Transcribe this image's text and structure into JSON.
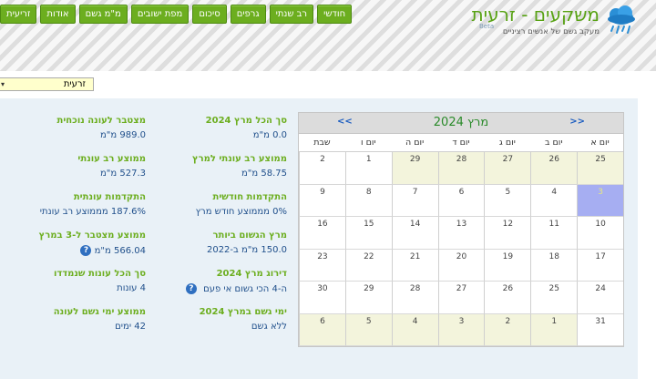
{
  "nav": [
    "זריעית",
    "אודות",
    "מ\"מ גשם",
    "מפת ישובים",
    "סיכום",
    "גרפים",
    "רב שנתי",
    "חודשי"
  ],
  "logo": {
    "title": "משקעים - זרעית",
    "subtitle": "מעקב גשם של אנשים רציניים",
    "beta": "Beta"
  },
  "location_select": {
    "value": "זרעית"
  },
  "stats_left": [
    {
      "label": "מצטבר לעונה נוכחית",
      "value": "989.0 מ\"מ"
    },
    {
      "label": "ממוצע רב עונתי",
      "value": "527.3 מ\"מ"
    },
    {
      "label": "התקדמות עונתית",
      "value": "187.6% מממוצע רב עונתי"
    },
    {
      "label": "ממוצע מצטבר ל-3 במרץ",
      "value": "566.04 מ\"מ"
    },
    {
      "label": "סך הכל עונות שנמדדו",
      "value": "4 עונות"
    },
    {
      "label": "ממוצע ימי גשם לעונה",
      "value": "42 ימים"
    }
  ],
  "stats_mid": [
    {
      "label": "סך הכל מרץ 2024",
      "value": "0.0 מ\"מ"
    },
    {
      "label": "ממוצע רב עונתי למרץ",
      "value": "58.75 מ\"מ"
    },
    {
      "label": "התקדמות חודשית",
      "value": "0% מממוצע חודש מרץ"
    },
    {
      "label": "מרץ הגשום ביותר",
      "value": "150.0 מ\"מ ב-2022"
    },
    {
      "label": "דירוג מרץ 2024",
      "value": "ה-4 הכי גשום אי פעם"
    },
    {
      "label": "ימי גשם במרץ 2024",
      "value": "ללא גשם"
    }
  ],
  "help_glyph": "?",
  "calendar": {
    "title": "מרץ 2024",
    "prev": "<<",
    "next": ">>",
    "weekdays": [
      "יום א",
      "יום ב",
      "יום ג",
      "יום ד",
      "יום ה",
      "יום ו",
      "שבת"
    ],
    "weeks": [
      [
        {
          "d": "25",
          "o": true
        },
        {
          "d": "26",
          "o": true
        },
        {
          "d": "27",
          "o": true
        },
        {
          "d": "28",
          "o": true
        },
        {
          "d": "29",
          "o": true
        },
        {
          "d": "1"
        },
        {
          "d": "2"
        }
      ],
      [
        {
          "d": "3",
          "t": true
        },
        {
          "d": "4"
        },
        {
          "d": "5"
        },
        {
          "d": "6"
        },
        {
          "d": "7"
        },
        {
          "d": "8"
        },
        {
          "d": "9"
        }
      ],
      [
        {
          "d": "10"
        },
        {
          "d": "11"
        },
        {
          "d": "12"
        },
        {
          "d": "13"
        },
        {
          "d": "14"
        },
        {
          "d": "15"
        },
        {
          "d": "16"
        }
      ],
      [
        {
          "d": "17"
        },
        {
          "d": "18"
        },
        {
          "d": "19"
        },
        {
          "d": "20"
        },
        {
          "d": "21"
        },
        {
          "d": "22"
        },
        {
          "d": "23"
        }
      ],
      [
        {
          "d": "24"
        },
        {
          "d": "25"
        },
        {
          "d": "26"
        },
        {
          "d": "27"
        },
        {
          "d": "28"
        },
        {
          "d": "29"
        },
        {
          "d": "30"
        }
      ],
      [
        {
          "d": "31"
        },
        {
          "d": "1",
          "o": true
        },
        {
          "d": "2",
          "o": true
        },
        {
          "d": "3",
          "o": true
        },
        {
          "d": "4",
          "o": true
        },
        {
          "d": "5",
          "o": true
        },
        {
          "d": "6",
          "o": true
        }
      ]
    ]
  },
  "colors": {
    "brand_green": "#6cae1f",
    "value_blue": "#1f4f8b",
    "today": "#a6aef2",
    "other_month": "#f3f4dc"
  }
}
